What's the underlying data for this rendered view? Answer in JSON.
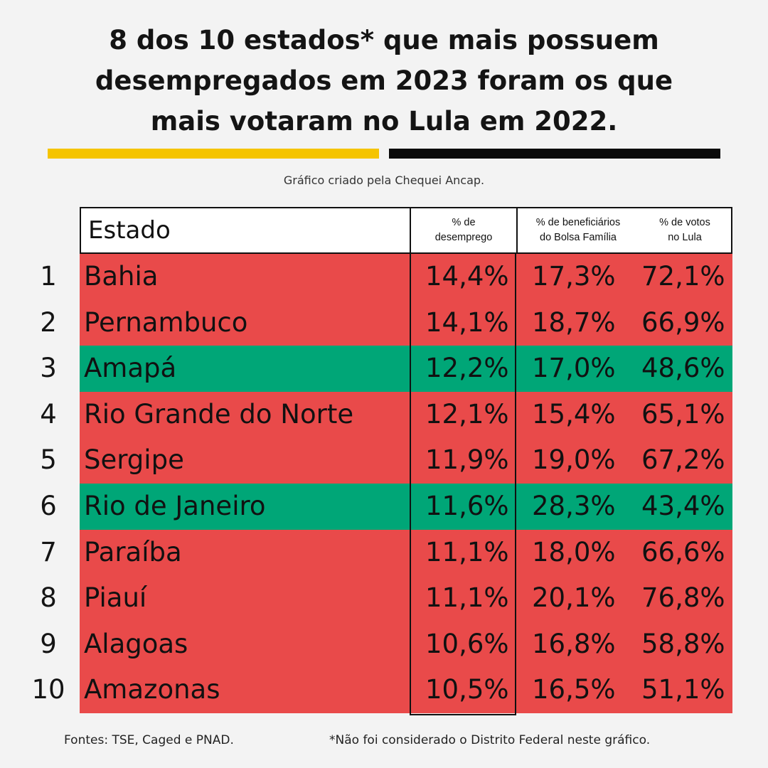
{
  "title_lines": [
    "8 dos 10 estados* que mais possuem",
    "desempregados em 2023 foram os que",
    "mais votaram no Lula em 2022."
  ],
  "credit": "Gráfico criado pela Chequei Ancap.",
  "colors": {
    "red": "#e94a4a",
    "green": "#00a677",
    "yellow": "#f5c400",
    "black": "#0b0b0b"
  },
  "chart_data": {
    "type": "table",
    "columns": [
      "Estado",
      "% de desemprego",
      "% de beneficiários do Bolsa Família",
      "% de votos no Lula"
    ],
    "header": {
      "estado": "Estado",
      "desemprego": [
        "% de",
        "desemprego"
      ],
      "bolsa": [
        "% de beneficiários",
        "do Bolsa Família"
      ],
      "votos": [
        "% de votos",
        "no Lula"
      ]
    },
    "rows": [
      {
        "rank": "1",
        "state": "Bahia",
        "desemprego": "14,4%",
        "bolsa": "17,3%",
        "votos": "72,1%",
        "color": "red"
      },
      {
        "rank": "2",
        "state": "Pernambuco",
        "desemprego": "14,1%",
        "bolsa": "18,7%",
        "votos": "66,9%",
        "color": "red"
      },
      {
        "rank": "3",
        "state": "Amapá",
        "desemprego": "12,2%",
        "bolsa": "17,0%",
        "votos": "48,6%",
        "color": "green"
      },
      {
        "rank": "4",
        "state": "Rio Grande do Norte",
        "desemprego": "12,1%",
        "bolsa": "15,4%",
        "votos": "65,1%",
        "color": "red"
      },
      {
        "rank": "5",
        "state": "Sergipe",
        "desemprego": "11,9%",
        "bolsa": "19,0%",
        "votos": "67,2%",
        "color": "red"
      },
      {
        "rank": "6",
        "state": "Rio de Janeiro",
        "desemprego": "11,6%",
        "bolsa": "28,3%",
        "votos": "43,4%",
        "color": "green"
      },
      {
        "rank": "7",
        "state": "Paraíba",
        "desemprego": "11,1%",
        "bolsa": "18,0%",
        "votos": "66,6%",
        "color": "red"
      },
      {
        "rank": "8",
        "state": "Piauí",
        "desemprego": "11,1%",
        "bolsa": "20,1%",
        "votos": "76,8%",
        "color": "red"
      },
      {
        "rank": "9",
        "state": "Alagoas",
        "desemprego": "10,6%",
        "bolsa": "16,8%",
        "votos": "58,8%",
        "color": "red"
      },
      {
        "rank": "10",
        "state": "Amazonas",
        "desemprego": "10,5%",
        "bolsa": "16,5%",
        "votos": "51,1%",
        "color": "red"
      }
    ]
  },
  "footer": {
    "sources": "Fontes: TSE, Caged e PNAD.",
    "note": "*Não foi considerado o Distrito Federal neste gráfico."
  }
}
